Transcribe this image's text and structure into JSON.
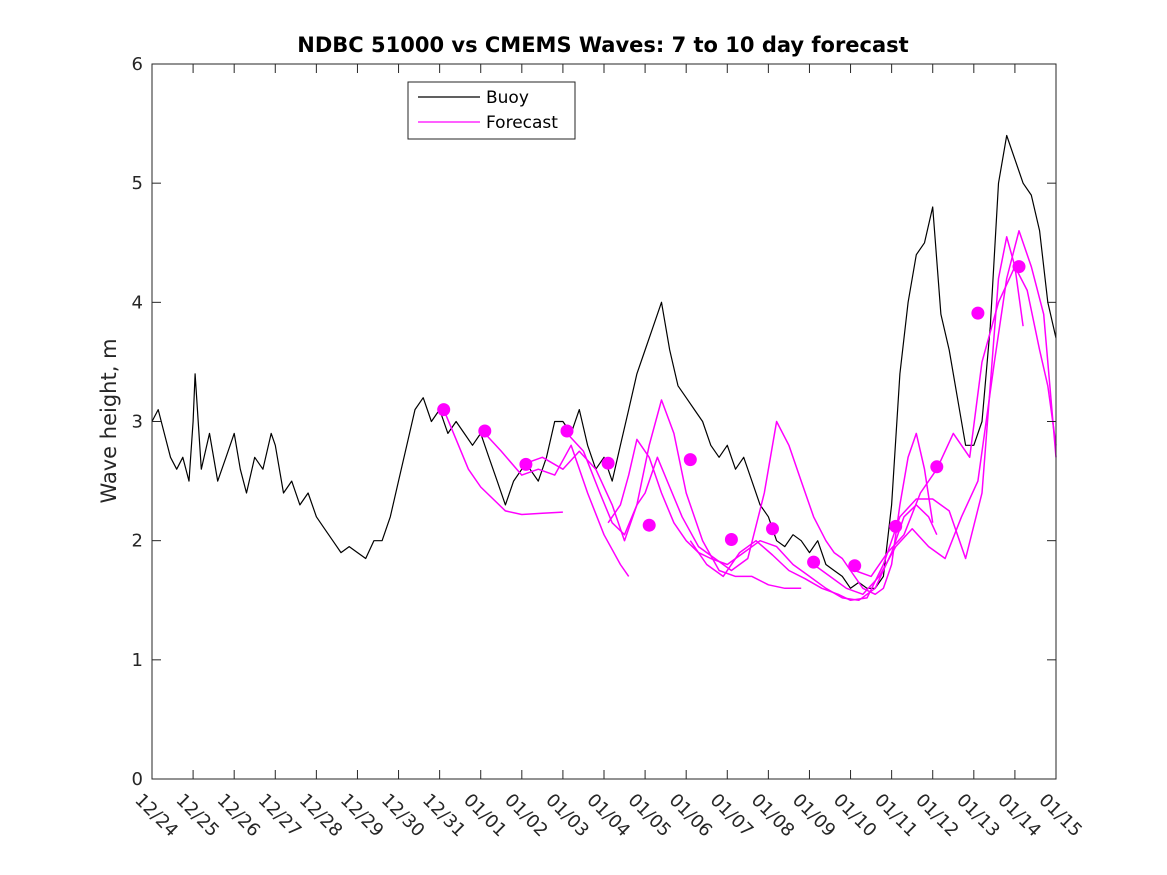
{
  "chart_data": {
    "type": "line",
    "title": "NDBC 51000 vs CMEMS Waves: 7 to 10 day forecast",
    "xlabel": "",
    "ylabel": "Wave height, m",
    "x_unit": "days since 12/24",
    "xlim": [
      0,
      22
    ],
    "ylim": [
      0,
      6
    ],
    "yticks": [
      0,
      1,
      2,
      3,
      4,
      5,
      6
    ],
    "xtick_labels": [
      "12/24",
      "12/25",
      "12/26",
      "12/27",
      "12/28",
      "12/29",
      "12/30",
      "12/31",
      "01/01",
      "01/02",
      "01/03",
      "01/04",
      "01/05",
      "01/06",
      "01/07",
      "01/08",
      "01/09",
      "01/10",
      "01/11",
      "01/12",
      "01/13",
      "01/14",
      "01/15"
    ],
    "grid": false,
    "legend": {
      "location": "top-center-left",
      "entries": [
        {
          "label": "Buoy",
          "color": "#000000"
        },
        {
          "label": "Forecast",
          "color": "#ff00ff"
        }
      ]
    },
    "series": [
      {
        "name": "Buoy",
        "color": "#000000",
        "points": [
          [
            0,
            3.0
          ],
          [
            0.15,
            3.1
          ],
          [
            0.3,
            2.9
          ],
          [
            0.45,
            2.7
          ],
          [
            0.6,
            2.6
          ],
          [
            0.75,
            2.7
          ],
          [
            0.9,
            2.5
          ],
          [
            1.0,
            3.0
          ],
          [
            1.05,
            3.4
          ],
          [
            1.2,
            2.6
          ],
          [
            1.4,
            2.9
          ],
          [
            1.6,
            2.5
          ],
          [
            1.8,
            2.7
          ],
          [
            2.0,
            2.9
          ],
          [
            2.15,
            2.6
          ],
          [
            2.3,
            2.4
          ],
          [
            2.5,
            2.7
          ],
          [
            2.7,
            2.6
          ],
          [
            2.9,
            2.9
          ],
          [
            3.0,
            2.8
          ],
          [
            3.2,
            2.4
          ],
          [
            3.4,
            2.5
          ],
          [
            3.6,
            2.3
          ],
          [
            3.8,
            2.4
          ],
          [
            4.0,
            2.2
          ],
          [
            4.2,
            2.1
          ],
          [
            4.4,
            2.0
          ],
          [
            4.6,
            1.9
          ],
          [
            4.8,
            1.95
          ],
          [
            5.0,
            1.9
          ],
          [
            5.2,
            1.85
          ],
          [
            5.4,
            2.0
          ],
          [
            5.6,
            2.0
          ],
          [
            5.8,
            2.2
          ],
          [
            6.0,
            2.5
          ],
          [
            6.2,
            2.8
          ],
          [
            6.4,
            3.1
          ],
          [
            6.6,
            3.2
          ],
          [
            6.8,
            3.0
          ],
          [
            7.0,
            3.1
          ],
          [
            7.2,
            2.9
          ],
          [
            7.4,
            3.0
          ],
          [
            7.6,
            2.9
          ],
          [
            7.8,
            2.8
          ],
          [
            8.0,
            2.9
          ],
          [
            8.2,
            2.7
          ],
          [
            8.4,
            2.5
          ],
          [
            8.6,
            2.3
          ],
          [
            8.8,
            2.5
          ],
          [
            9.0,
            2.6
          ],
          [
            9.2,
            2.6
          ],
          [
            9.4,
            2.5
          ],
          [
            9.6,
            2.7
          ],
          [
            9.8,
            3.0
          ],
          [
            10.0,
            3.0
          ],
          [
            10.2,
            2.9
          ],
          [
            10.4,
            3.1
          ],
          [
            10.6,
            2.8
          ],
          [
            10.8,
            2.6
          ],
          [
            11.0,
            2.7
          ],
          [
            11.2,
            2.5
          ],
          [
            11.4,
            2.8
          ],
          [
            11.6,
            3.1
          ],
          [
            11.8,
            3.4
          ],
          [
            12.0,
            3.6
          ],
          [
            12.2,
            3.8
          ],
          [
            12.4,
            4.0
          ],
          [
            12.6,
            3.6
          ],
          [
            12.8,
            3.3
          ],
          [
            13.0,
            3.2
          ],
          [
            13.2,
            3.1
          ],
          [
            13.4,
            3.0
          ],
          [
            13.6,
            2.8
          ],
          [
            13.8,
            2.7
          ],
          [
            14.0,
            2.8
          ],
          [
            14.2,
            2.6
          ],
          [
            14.4,
            2.7
          ],
          [
            14.6,
            2.5
          ],
          [
            14.8,
            2.3
          ],
          [
            15.0,
            2.2
          ],
          [
            15.2,
            2.0
          ],
          [
            15.4,
            1.95
          ],
          [
            15.6,
            2.05
          ],
          [
            15.8,
            2.0
          ],
          [
            16.0,
            1.9
          ],
          [
            16.2,
            2.0
          ],
          [
            16.4,
            1.8
          ],
          [
            16.6,
            1.75
          ],
          [
            16.8,
            1.7
          ],
          [
            17.0,
            1.6
          ],
          [
            17.2,
            1.65
          ],
          [
            17.4,
            1.6
          ],
          [
            17.6,
            1.6
          ],
          [
            17.8,
            1.7
          ],
          [
            18.0,
            2.3
          ],
          [
            18.2,
            3.4
          ],
          [
            18.4,
            4.0
          ],
          [
            18.6,
            4.4
          ],
          [
            18.8,
            4.5
          ],
          [
            19.0,
            4.8
          ],
          [
            19.2,
            3.9
          ],
          [
            19.4,
            3.6
          ],
          [
            19.6,
            3.2
          ],
          [
            19.8,
            2.8
          ],
          [
            20.0,
            2.8
          ],
          [
            20.2,
            3.0
          ],
          [
            20.4,
            3.8
          ],
          [
            20.6,
            5.0
          ],
          [
            20.8,
            5.4
          ],
          [
            21.0,
            5.2
          ],
          [
            21.2,
            5.0
          ],
          [
            21.4,
            4.9
          ],
          [
            21.6,
            4.6
          ],
          [
            21.8,
            4.0
          ],
          [
            22.0,
            3.7
          ]
        ]
      },
      {
        "name": "Forecast",
        "color": "#ff00ff",
        "segments": [
          [
            [
              7.1,
              3.1
            ],
            [
              7.4,
              2.85
            ],
            [
              7.7,
              2.6
            ],
            [
              8.0,
              2.45
            ],
            [
              8.3,
              2.35
            ],
            [
              8.6,
              2.25
            ],
            [
              9.0,
              2.22
            ],
            [
              9.5,
              2.23
            ],
            [
              10.0,
              2.24
            ]
          ],
          [
            [
              8.1,
              2.9
            ],
            [
              8.5,
              2.75
            ],
            [
              9.0,
              2.55
            ],
            [
              9.4,
              2.6
            ],
            [
              9.8,
              2.55
            ],
            [
              10.2,
              2.8
            ],
            [
              10.6,
              2.4
            ],
            [
              11.0,
              2.05
            ],
            [
              11.4,
              1.8
            ],
            [
              11.6,
              1.7
            ]
          ],
          [
            [
              9.1,
              2.65
            ],
            [
              9.5,
              2.7
            ],
            [
              10.0,
              2.6
            ],
            [
              10.4,
              2.75
            ],
            [
              10.8,
              2.6
            ],
            [
              11.2,
              2.3
            ],
            [
              11.5,
              2.0
            ],
            [
              11.8,
              2.3
            ],
            [
              12.1,
              2.8
            ],
            [
              12.4,
              3.18
            ],
            [
              12.7,
              2.9
            ],
            [
              13.0,
              2.4
            ],
            [
              13.4,
              2.0
            ],
            [
              13.8,
              1.75
            ],
            [
              14.2,
              1.7
            ],
            [
              14.6,
              1.7
            ],
            [
              15.0,
              1.63
            ],
            [
              15.4,
              1.6
            ],
            [
              15.8,
              1.6
            ]
          ],
          [
            [
              10.1,
              2.9
            ],
            [
              10.5,
              2.75
            ],
            [
              10.9,
              2.4
            ],
            [
              11.2,
              2.15
            ],
            [
              11.5,
              2.05
            ],
            [
              11.8,
              2.3
            ],
            [
              12.0,
              2.4
            ],
            [
              12.3,
              2.7
            ],
            [
              12.6,
              2.45
            ],
            [
              12.9,
              2.2
            ],
            [
              13.3,
              1.95
            ],
            [
              13.7,
              1.85
            ],
            [
              14.1,
              1.75
            ],
            [
              14.5,
              1.85
            ],
            [
              14.9,
              2.4
            ],
            [
              15.2,
              3.0
            ],
            [
              15.5,
              2.8
            ],
            [
              15.8,
              2.5
            ],
            [
              16.1,
              2.2
            ],
            [
              16.4,
              2.0
            ],
            [
              16.6,
              1.9
            ],
            [
              16.8,
              1.85
            ],
            [
              17.0,
              1.75
            ],
            [
              17.3,
              1.6
            ],
            [
              17.6,
              1.55
            ],
            [
              17.8,
              1.6
            ],
            [
              18.0,
              1.8
            ],
            [
              18.2,
              2.3
            ],
            [
              18.4,
              2.7
            ],
            [
              18.6,
              2.9
            ],
            [
              18.8,
              2.6
            ],
            [
              19.0,
              2.15
            ]
          ],
          [
            [
              11.1,
              2.15
            ],
            [
              11.4,
              2.3
            ],
            [
              11.6,
              2.55
            ],
            [
              11.8,
              2.85
            ],
            [
              12.1,
              2.7
            ],
            [
              12.4,
              2.4
            ],
            [
              12.7,
              2.15
            ],
            [
              13.0,
              2.0
            ],
            [
              13.3,
              1.9
            ],
            [
              13.6,
              1.85
            ],
            [
              14.0,
              1.8
            ],
            [
              14.4,
              1.9
            ],
            [
              14.8,
              2.0
            ],
            [
              15.2,
              1.95
            ],
            [
              15.6,
              1.8
            ],
            [
              16.0,
              1.7
            ],
            [
              16.4,
              1.6
            ],
            [
              16.8,
              1.52
            ],
            [
              17.2,
              1.5
            ],
            [
              17.6,
              1.6
            ],
            [
              18.0,
              1.9
            ],
            [
              18.3,
              2.2
            ],
            [
              18.6,
              2.3
            ],
            [
              18.9,
              2.2
            ],
            [
              19.1,
              2.05
            ]
          ],
          [
            [
              13.1,
              2.0
            ],
            [
              13.5,
              1.8
            ],
            [
              13.9,
              1.7
            ],
            [
              14.3,
              1.9
            ],
            [
              14.7,
              2.0
            ],
            [
              15.1,
              1.88
            ],
            [
              15.5,
              1.75
            ],
            [
              15.9,
              1.68
            ],
            [
              16.3,
              1.6
            ],
            [
              16.7,
              1.55
            ],
            [
              17.0,
              1.5
            ],
            [
              17.4,
              1.52
            ],
            [
              17.8,
              1.8
            ],
            [
              18.2,
              2.2
            ],
            [
              18.6,
              2.35
            ],
            [
              19.0,
              2.35
            ],
            [
              19.4,
              2.25
            ],
            [
              19.8,
              1.85
            ],
            [
              20.2,
              2.4
            ],
            [
              20.6,
              4.2
            ],
            [
              20.8,
              4.55
            ],
            [
              21.0,
              4.3
            ],
            [
              21.2,
              3.8
            ]
          ],
          [
            [
              16.1,
              1.8
            ],
            [
              16.5,
              1.7
            ],
            [
              16.9,
              1.6
            ],
            [
              17.3,
              1.55
            ],
            [
              17.7,
              1.7
            ],
            [
              18.1,
              1.95
            ],
            [
              18.5,
              2.1
            ],
            [
              18.9,
              1.95
            ],
            [
              19.3,
              1.85
            ],
            [
              19.7,
              2.2
            ],
            [
              20.1,
              2.5
            ],
            [
              20.5,
              3.5
            ],
            [
              20.8,
              4.2
            ],
            [
              21.1,
              4.6
            ],
            [
              21.4,
              4.3
            ],
            [
              21.7,
              3.9
            ],
            [
              22.0,
              2.7
            ]
          ],
          [
            [
              17.1,
              1.75
            ],
            [
              17.5,
              1.7
            ],
            [
              17.9,
              1.9
            ],
            [
              18.3,
              2.05
            ],
            [
              18.7,
              2.4
            ],
            [
              19.1,
              2.6
            ],
            [
              19.5,
              2.9
            ],
            [
              19.9,
              2.7
            ],
            [
              20.2,
              3.5
            ],
            [
              20.6,
              4.0
            ],
            [
              21.0,
              4.3
            ],
            [
              21.3,
              4.1
            ],
            [
              21.6,
              3.6
            ],
            [
              21.8,
              3.3
            ],
            [
              22.0,
              2.8
            ]
          ]
        ]
      },
      {
        "name": "Forecast markers",
        "color": "#ff00ff",
        "points": [
          [
            7.1,
            3.1
          ],
          [
            8.1,
            2.92
          ],
          [
            9.1,
            2.64
          ],
          [
            10.1,
            2.92
          ],
          [
            11.1,
            2.65
          ],
          [
            12.1,
            2.13
          ],
          [
            13.1,
            2.68
          ],
          [
            14.1,
            2.01
          ],
          [
            15.1,
            2.1
          ],
          [
            16.1,
            1.82
          ],
          [
            17.1,
            1.79
          ],
          [
            18.1,
            2.12
          ],
          [
            19.1,
            2.62
          ],
          [
            20.1,
            3.91
          ],
          [
            21.1,
            4.3
          ]
        ]
      }
    ]
  }
}
